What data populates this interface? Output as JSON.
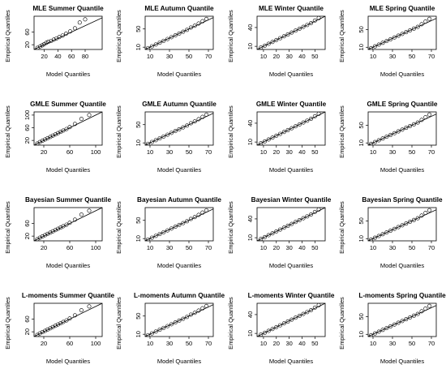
{
  "chart_data": [
    {
      "type": "scatter",
      "title": "MLE Summer Quantile",
      "xlabel": "Model Quantiles",
      "ylabel": "Empirical Quantiles",
      "xticks": [
        "20",
        "40",
        "60",
        "80"
      ],
      "yticks": [
        "20",
        "60"
      ],
      "xlim": [
        5,
        105
      ],
      "ylim": [
        5,
        110
      ],
      "reference_line": "y = x",
      "x": [
        10,
        14,
        17,
        20,
        23,
        26,
        30,
        34,
        38,
        42,
        47,
        52,
        58,
        65,
        72,
        80
      ],
      "y": [
        10,
        15,
        18,
        22,
        26,
        29,
        32,
        36,
        40,
        44,
        49,
        55,
        62,
        72,
        90,
        100
      ]
    },
    {
      "type": "scatter",
      "title": "MLE Autumn Quantile",
      "xlabel": "Model Quantiles",
      "ylabel": "Empirical Quantiles",
      "xticks": [
        "10",
        "30",
        "50",
        "70"
      ],
      "yticks": [
        "10",
        "50"
      ],
      "xlim": [
        5,
        75
      ],
      "ylim": [
        5,
        78
      ],
      "reference_line": "y = x",
      "x": [
        8,
        12,
        16,
        20,
        24,
        28,
        32,
        36,
        40,
        44,
        48,
        52,
        56,
        60,
        64,
        68
      ],
      "y": [
        8,
        12,
        16,
        20,
        24,
        28,
        32,
        36,
        40,
        44,
        48,
        53,
        57,
        62,
        67,
        72
      ]
    },
    {
      "type": "scatter",
      "title": "MLE Winter Quantile",
      "xlabel": "Model Quantiles",
      "ylabel": "Empirical Quantiles",
      "xticks": [
        "10",
        "20",
        "30",
        "40",
        "50"
      ],
      "yticks": [
        "10",
        "40"
      ],
      "xlim": [
        5,
        58
      ],
      "ylim": [
        5,
        58
      ],
      "reference_line": "y = x",
      "x": [
        8,
        11,
        14,
        17,
        20,
        23,
        26,
        29,
        32,
        35,
        38,
        41,
        44,
        47,
        50,
        53
      ],
      "y": [
        8,
        11,
        14,
        17,
        20,
        23,
        26,
        29,
        32,
        35,
        38,
        41,
        44,
        47,
        51,
        55
      ]
    },
    {
      "type": "scatter",
      "title": "MLE Spring Quantile",
      "xlabel": "Model Quantiles",
      "ylabel": "Empirical Quantiles",
      "xticks": [
        "10",
        "30",
        "50",
        "70"
      ],
      "yticks": [
        "10",
        "50"
      ],
      "xlim": [
        5,
        75
      ],
      "ylim": [
        5,
        80
      ],
      "reference_line": "y = x",
      "x": [
        8,
        12,
        16,
        20,
        24,
        28,
        32,
        36,
        40,
        44,
        48,
        52,
        56,
        60,
        64,
        68
      ],
      "y": [
        8,
        12,
        16,
        20,
        24,
        28,
        32,
        36,
        40,
        44,
        48,
        52,
        56,
        62,
        68,
        74
      ]
    },
    {
      "type": "scatter",
      "title": "GMLE Summer Quantile",
      "xlabel": "Model Quantiles",
      "ylabel": "Empirical Quantiles",
      "xticks": [
        "20",
        "60",
        "100"
      ],
      "yticks": [
        "20",
        "60",
        "100"
      ],
      "xlim": [
        5,
        110
      ],
      "ylim": [
        5,
        110
      ],
      "reference_line": "y = x",
      "x": [
        10,
        14,
        18,
        22,
        26,
        30,
        34,
        38,
        42,
        46,
        50,
        55,
        60,
        68,
        78,
        90
      ],
      "y": [
        10,
        15,
        19,
        23,
        27,
        31,
        35,
        39,
        43,
        47,
        51,
        56,
        62,
        72,
        88,
        100
      ]
    },
    {
      "type": "scatter",
      "title": "GMLE Autumn Quantile",
      "xlabel": "Model Quantiles",
      "ylabel": "Empirical Quantiles",
      "xticks": [
        "10",
        "30",
        "50",
        "70"
      ],
      "yticks": [
        "10",
        "50"
      ],
      "xlim": [
        5,
        75
      ],
      "ylim": [
        5,
        78
      ],
      "reference_line": "y = x",
      "x": [
        8,
        12,
        16,
        20,
        24,
        28,
        32,
        36,
        40,
        44,
        48,
        52,
        56,
        60,
        64,
        68
      ],
      "y": [
        8,
        12,
        16,
        20,
        24,
        28,
        32,
        36,
        40,
        44,
        48,
        53,
        57,
        62,
        67,
        72
      ]
    },
    {
      "type": "scatter",
      "title": "GMLE Winter Quantile",
      "xlabel": "Model Quantiles",
      "ylabel": "Empirical Quantiles",
      "xticks": [
        "10",
        "20",
        "30",
        "40",
        "50"
      ],
      "yticks": [
        "10",
        "40"
      ],
      "xlim": [
        5,
        58
      ],
      "ylim": [
        5,
        58
      ],
      "reference_line": "y = x",
      "x": [
        8,
        11,
        14,
        17,
        20,
        23,
        26,
        29,
        32,
        35,
        38,
        41,
        44,
        47,
        50,
        53
      ],
      "y": [
        8,
        11,
        14,
        17,
        20,
        23,
        26,
        29,
        32,
        35,
        38,
        41,
        44,
        47,
        51,
        55
      ]
    },
    {
      "type": "scatter",
      "title": "GMLE Spring Quantile",
      "xlabel": "Model Quantiles",
      "ylabel": "Empirical Quantiles",
      "xticks": [
        "10",
        "30",
        "50",
        "70"
      ],
      "yticks": [
        "10",
        "50"
      ],
      "xlim": [
        5,
        75
      ],
      "ylim": [
        5,
        80
      ],
      "reference_line": "y = x",
      "x": [
        8,
        12,
        16,
        20,
        24,
        28,
        32,
        36,
        40,
        44,
        48,
        52,
        56,
        60,
        64,
        68
      ],
      "y": [
        8,
        12,
        16,
        20,
        24,
        28,
        32,
        36,
        40,
        44,
        48,
        52,
        56,
        62,
        68,
        74
      ]
    },
    {
      "type": "scatter",
      "title": "Bayesian Summer Quantile",
      "xlabel": "Model Quantiles",
      "ylabel": "Empirical Quantiles",
      "xticks": [
        "20",
        "60",
        "100"
      ],
      "yticks": [
        "20",
        "60"
      ],
      "xlim": [
        5,
        110
      ],
      "ylim": [
        5,
        110
      ],
      "reference_line": "y = x",
      "x": [
        10,
        14,
        18,
        22,
        26,
        30,
        34,
        38,
        42,
        46,
        50,
        55,
        60,
        68,
        78,
        90
      ],
      "y": [
        10,
        15,
        19,
        23,
        27,
        31,
        35,
        39,
        43,
        47,
        51,
        56,
        62,
        72,
        88,
        100
      ]
    },
    {
      "type": "scatter",
      "title": "Bayesian Autumn Quantile",
      "xlabel": "Model Quantiles",
      "ylabel": "Empirical Quantiles",
      "xticks": [
        "10",
        "30",
        "50",
        "70"
      ],
      "yticks": [
        "10",
        "50"
      ],
      "xlim": [
        5,
        75
      ],
      "ylim": [
        5,
        78
      ],
      "reference_line": "y = x",
      "x": [
        8,
        12,
        16,
        20,
        24,
        28,
        32,
        36,
        40,
        44,
        48,
        52,
        56,
        60,
        64,
        68
      ],
      "y": [
        8,
        12,
        16,
        20,
        24,
        28,
        32,
        36,
        40,
        44,
        48,
        53,
        57,
        62,
        67,
        72
      ]
    },
    {
      "type": "scatter",
      "title": "Bayesian Winter Quantile",
      "xlabel": "Model Quantiles",
      "ylabel": "Empirical Quantiles",
      "xticks": [
        "10",
        "20",
        "30",
        "40",
        "50"
      ],
      "yticks": [
        "10",
        "40"
      ],
      "xlim": [
        5,
        58
      ],
      "ylim": [
        5,
        58
      ],
      "reference_line": "y = x",
      "x": [
        8,
        11,
        14,
        17,
        20,
        23,
        26,
        29,
        32,
        35,
        38,
        41,
        44,
        47,
        50,
        53
      ],
      "y": [
        8,
        11,
        14,
        17,
        20,
        23,
        26,
        29,
        32,
        35,
        38,
        41,
        44,
        47,
        51,
        55
      ]
    },
    {
      "type": "scatter",
      "title": "Bayesian Spring Quantile",
      "xlabel": "Model Quantiles",
      "ylabel": "Empirical Quantiles",
      "xticks": [
        "10",
        "30",
        "50",
        "70"
      ],
      "yticks": [
        "10",
        "50"
      ],
      "xlim": [
        5,
        75
      ],
      "ylim": [
        5,
        80
      ],
      "reference_line": "y = x",
      "x": [
        8,
        12,
        16,
        20,
        24,
        28,
        32,
        36,
        40,
        44,
        48,
        52,
        56,
        60,
        64,
        68
      ],
      "y": [
        8,
        12,
        16,
        20,
        24,
        28,
        32,
        36,
        40,
        44,
        48,
        52,
        56,
        62,
        68,
        74
      ]
    },
    {
      "type": "scatter",
      "title": "L-moments Summer Quantile",
      "xlabel": "Model Quantiles",
      "ylabel": "Empirical Quantiles",
      "xticks": [
        "20",
        "60",
        "100"
      ],
      "yticks": [
        "20",
        "60"
      ],
      "xlim": [
        5,
        110
      ],
      "ylim": [
        5,
        110
      ],
      "reference_line": "y = x",
      "x": [
        10,
        14,
        18,
        22,
        26,
        30,
        34,
        38,
        42,
        46,
        50,
        55,
        60,
        68,
        78,
        90
      ],
      "y": [
        10,
        15,
        19,
        23,
        27,
        31,
        35,
        39,
        43,
        47,
        51,
        56,
        62,
        72,
        88,
        100
      ]
    },
    {
      "type": "scatter",
      "title": "L-moments Autumn Quantile",
      "xlabel": "Model Quantiles",
      "ylabel": "Empirical Quantiles",
      "xticks": [
        "10",
        "30",
        "50",
        "70"
      ],
      "yticks": [
        "10",
        "50"
      ],
      "xlim": [
        5,
        75
      ],
      "ylim": [
        5,
        78
      ],
      "reference_line": "y = x",
      "x": [
        8,
        12,
        16,
        20,
        24,
        28,
        32,
        36,
        40,
        44,
        48,
        52,
        56,
        60,
        64,
        68
      ],
      "y": [
        8,
        12,
        16,
        20,
        24,
        28,
        32,
        36,
        40,
        44,
        48,
        53,
        57,
        62,
        67,
        72
      ]
    },
    {
      "type": "scatter",
      "title": "L-moments Winter Quantile",
      "xlabel": "Model Quantiles",
      "ylabel": "Empirical Quantiles",
      "xticks": [
        "10",
        "20",
        "30",
        "40",
        "50"
      ],
      "yticks": [
        "10",
        "40"
      ],
      "xlim": [
        5,
        58
      ],
      "ylim": [
        5,
        58
      ],
      "reference_line": "y = x",
      "x": [
        8,
        11,
        14,
        17,
        20,
        23,
        26,
        29,
        32,
        35,
        38,
        41,
        44,
        47,
        50,
        53
      ],
      "y": [
        8,
        11,
        14,
        17,
        20,
        23,
        26,
        29,
        32,
        35,
        38,
        41,
        44,
        47,
        51,
        55
      ]
    },
    {
      "type": "scatter",
      "title": "L-moments Spring Quantile",
      "xlabel": "Model Quantiles",
      "ylabel": "Empirical Quantiles",
      "xticks": [
        "10",
        "30",
        "50",
        "70"
      ],
      "yticks": [
        "10",
        "50"
      ],
      "xlim": [
        5,
        75
      ],
      "ylim": [
        5,
        80
      ],
      "reference_line": "y = x",
      "x": [
        8,
        12,
        16,
        20,
        24,
        28,
        32,
        36,
        40,
        44,
        48,
        52,
        56,
        60,
        64,
        68
      ],
      "y": [
        8,
        12,
        16,
        20,
        24,
        28,
        32,
        36,
        40,
        44,
        48,
        52,
        56,
        62,
        68,
        74
      ]
    }
  ]
}
